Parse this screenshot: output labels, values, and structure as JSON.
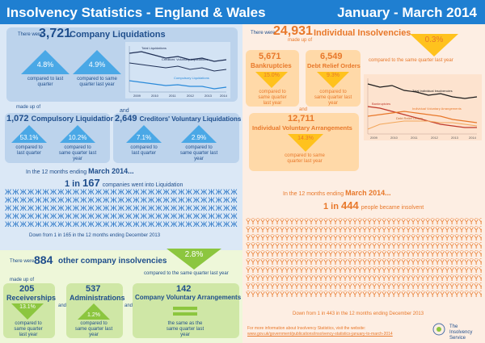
{
  "header": {
    "title": "Insolvency Statistics - England & Wales",
    "period": "January - March 2014"
  },
  "company": {
    "intro": "There were",
    "total": "3,721",
    "total_label": "Company Liquidations",
    "cmp_last_quarter_pct": "4.8%",
    "cmp_last_quarter_label": "compared to last quarter",
    "cmp_last_year_pct": "4.9%",
    "cmp_last_year_label": "compared to same quarter last year",
    "made_up_of": "made up of",
    "and": "and",
    "compulsory_num": "1,072",
    "compulsory_label": "Compulsory Liquidations",
    "compulsory_q_pct": "53.1%",
    "compulsory_y_pct": "10.2%",
    "cvl_num": "2,649",
    "cvl_label": "Creditors' Voluntary Liquidations",
    "cvl_q_pct": "7.1%",
    "cvl_y_pct": "2.9%",
    "twelve_months": "In the 12 months ending",
    "twelve_months_bold": "March 2014...",
    "ratio_pre": "1 in",
    "ratio_num": "167",
    "ratio_post": "companies went into Liquidation",
    "down_text": "Down from 1 in 165 in the 12 months ending December 2013",
    "chart_legend": [
      "Total Liquidations",
      "Creditors' Voluntary Liquidations",
      "Compulsory Liquidations"
    ],
    "chart_years": [
      "2009",
      "2010",
      "2011",
      "2012",
      "2013",
      "2014"
    ]
  },
  "other": {
    "intro": "There were",
    "num": "884",
    "label": "other company insolvencies",
    "pct": "2.8%",
    "pct_label": "compared to the same quarter last year",
    "made_up_of": "made up of",
    "receiverships_num": "205",
    "receiverships_label": "Receiverships",
    "receiverships_pct": "13.1%",
    "receiverships_cmp": "compared to same quarter last year",
    "and": "and",
    "admin_num": "537",
    "admin_label": "Administrations",
    "admin_pct": "1.2%",
    "admin_cmp": "compared to same quarter last year",
    "cva_num": "142",
    "cva_label": "Company Voluntary Arrangements",
    "cva_cmp": "the same as the same quarter last year"
  },
  "individual": {
    "intro": "There were",
    "total": "24,931",
    "total_label": "Individual Insolvencies",
    "made_up_of": "made up of",
    "pct": "0.3%",
    "pct_label": "compared to the same quarter last year",
    "bankruptcies_num": "5,671",
    "bankruptcies_label": "Bankruptcies",
    "bankruptcies_pct": "15.0%",
    "bankruptcies_cmp": "compared to same quarter last year",
    "dro_num": "6,549",
    "dro_label": "Debt Relief Orders",
    "dro_pct": "9.3%",
    "dro_cmp": "compared to same quarter last year",
    "and": "and",
    "iva_num": "12,711",
    "iva_label": "Individual Voluntary Arrangements",
    "iva_pct": "14.3%",
    "iva_cmp": "compared to same quarter last year",
    "twelve_months": "In the 12 months ending",
    "twelve_months_bold": "March 2014...",
    "ratio_pre": "1 in",
    "ratio_num": "444",
    "ratio_post": "people became insolvent",
    "down_text": "Down from 1 in 443 in the 12 months ending December 2013",
    "chart_legend": [
      "Total Individual Insolvencies",
      "Bankruptcies",
      "Individual Voluntary Arrangements",
      "Debt Relief Orders"
    ],
    "chart_years": [
      "2009",
      "2010",
      "2011",
      "2012",
      "2013",
      "2014"
    ]
  },
  "footer": {
    "more_info": "For more information about Insolvency Statistics, visit the website:",
    "url": "www.gov.uk/government/publications/insolvency-statistics-january-to-march-2014",
    "logo_text": "The Insolvency Service"
  },
  "colors": {
    "header": "#1f7fd1",
    "blue_triangle": "#4aa8e6",
    "orange_triangle": "#ffc21d",
    "green_triangle": "#8cc63f"
  },
  "icons": [
    "person-blue-icon",
    "person-orange-icon",
    "crest-logo-icon"
  ]
}
